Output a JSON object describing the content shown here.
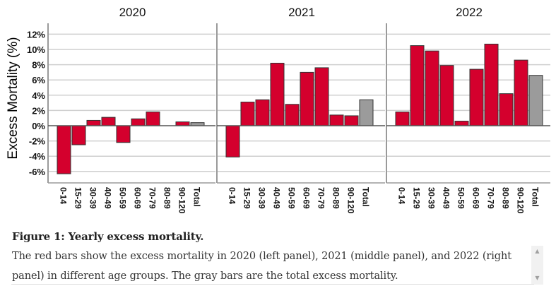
{
  "chart_data": {
    "type": "bar",
    "ylabel": "Excess Mortality (%)",
    "xlabel": "",
    "ylim": [
      -7,
      13
    ],
    "yticks": [
      -6,
      -4,
      -2,
      0,
      2,
      4,
      6,
      8,
      10,
      12
    ],
    "ytick_labels": [
      "-6%",
      "-4%",
      "-2%",
      "0%",
      "2%",
      "4%",
      "6%",
      "8%",
      "10%",
      "12%"
    ],
    "grid": true,
    "categories": [
      "0-14",
      "15-29",
      "30-39",
      "40-49",
      "50-59",
      "60-69",
      "70-79",
      "80-89",
      "90-120",
      "Total"
    ],
    "colors": {
      "age_group": "#d4002d",
      "total": "#9b9b9b",
      "outline": "#333333",
      "grid": "#cfcfcf",
      "axis": "#9a9a9a"
    },
    "panels": [
      {
        "title": "2020",
        "values": [
          -6.3,
          -2.5,
          0.7,
          1.1,
          -2.2,
          0.9,
          1.8,
          0.0,
          0.5,
          0.4
        ]
      },
      {
        "title": "2021",
        "values": [
          -4.1,
          3.1,
          3.4,
          8.2,
          2.8,
          7.0,
          7.6,
          1.4,
          1.3,
          3.4
        ]
      },
      {
        "title": "2022",
        "values": [
          1.8,
          10.5,
          9.8,
          7.9,
          0.6,
          7.4,
          10.7,
          4.2,
          8.6,
          6.6
        ]
      }
    ]
  },
  "caption": {
    "title": "Figure 1: Yearly excess mortality.",
    "body": "The red bars show the excess mortality in 2020 (left panel), 2021 (middle panel), and 2022 (right panel) in different age groups. The gray bars are the total excess mortality."
  },
  "scrollbar": {
    "up_icon": "▲",
    "down_icon": "▼"
  }
}
